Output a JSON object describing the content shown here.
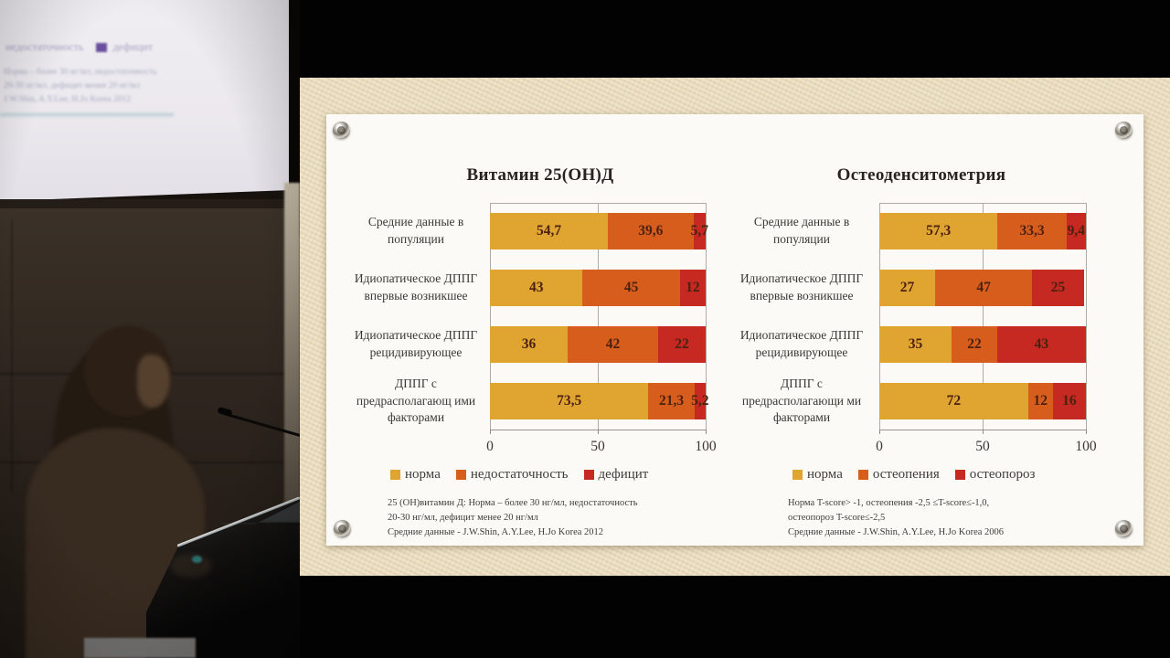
{
  "projection": {
    "legend_left": "недостаточность",
    "legend_right": "дефицит",
    "lines": [
      "Норма – более 30 нг/мл, недостаточность",
      "20-30 нг/мл, дефицит менее 20 нг/мл",
      "J.W.Shin, A.Y.Lee, H.Jo Korea 2012"
    ]
  },
  "slide": {
    "background_color": "#ecdfc1",
    "card_color": "#fbfaf7"
  },
  "chart_data": [
    {
      "type": "bar",
      "orientation": "horizontal",
      "stacked": true,
      "title": "Витамин 25(ОН)Д",
      "categories": [
        "Средние данные в популяции",
        "Идиопатическое ДППГ впервые возникшее",
        "Идиопатическое ДППГ рецидивирующее",
        "ДППГ с предрасполагающ ими факторами"
      ],
      "xlim": [
        0,
        100
      ],
      "xticks": [
        "0",
        "50",
        "100"
      ],
      "grid": true,
      "legend_position": "bottom",
      "series": [
        {
          "name": "норма",
          "color": "#E0A531",
          "values": [
            54.7,
            43,
            36,
            73.5
          ],
          "display": [
            "54,7",
            "43",
            "36",
            "73,5"
          ]
        },
        {
          "name": "недостаточность",
          "color": "#D75D1D",
          "values": [
            39.6,
            45,
            42,
            21.3
          ],
          "display": [
            "39,6",
            "45",
            "42",
            "21,3"
          ]
        },
        {
          "name": "дефицит",
          "color": "#C62822",
          "values": [
            5.7,
            12,
            22,
            5.2
          ],
          "display": [
            "5,7",
            "12",
            "22",
            "5,2"
          ]
        }
      ],
      "footnote": [
        "25 (ОН)витамин Д: Норма – более 30 нг/мл, недостаточность",
        "20-30 нг/мл, дефицит менее 20 нг/мл",
        "Средние данные - J.W.Shin, A.Y.Lee, H.Jo Korea 2012"
      ]
    },
    {
      "type": "bar",
      "orientation": "horizontal",
      "stacked": true,
      "title": "Остеоденситометрия",
      "categories": [
        "Средние данные в популяции",
        "Идиопатическое ДППГ впервые возникшее",
        "Идиопатическое ДППГ рецидивирующее",
        "ДППГ с предрасполагающи ми факторами"
      ],
      "xlim": [
        0,
        100
      ],
      "xticks": [
        "0",
        "50",
        "100"
      ],
      "grid": true,
      "legend_position": "bottom",
      "series": [
        {
          "name": "норма",
          "color": "#E0A531",
          "values": [
            57.3,
            27,
            35,
            72
          ],
          "display": [
            "57,3",
            "27",
            "35",
            "72"
          ]
        },
        {
          "name": "остеопения",
          "color": "#D75D1D",
          "values": [
            33.3,
            47,
            22,
            12
          ],
          "display": [
            "33,3",
            "47",
            "22",
            "12"
          ]
        },
        {
          "name": "остеопороз",
          "color": "#C62822",
          "values": [
            9.4,
            25,
            43,
            16
          ],
          "display": [
            "9,4",
            "25",
            "43",
            "16"
          ]
        }
      ],
      "footnote": [
        "Норма T-score> -1,  остеопения -2,5 ≤T-score≤-1,0,",
        "остеопороз T-score≤-2,5",
        "Средние данные  - J.W.Shin, A.Y.Lee, H.Jo Korea 2006"
      ]
    }
  ]
}
